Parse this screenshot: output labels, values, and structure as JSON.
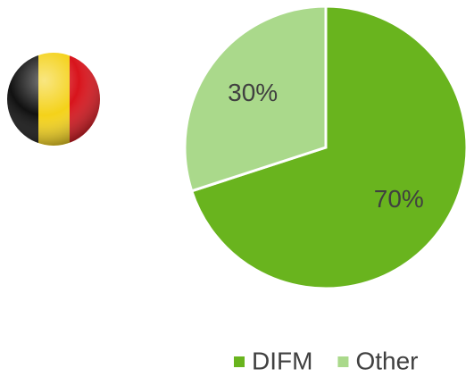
{
  "chart_data": {
    "type": "pie",
    "categories": [
      "DIFM",
      "Other"
    ],
    "values": [
      70,
      30
    ],
    "value_labels": [
      "70%",
      "30%"
    ],
    "colors": [
      "#69b41e",
      "#aad98b"
    ],
    "legend": "bottom-right"
  }
}
